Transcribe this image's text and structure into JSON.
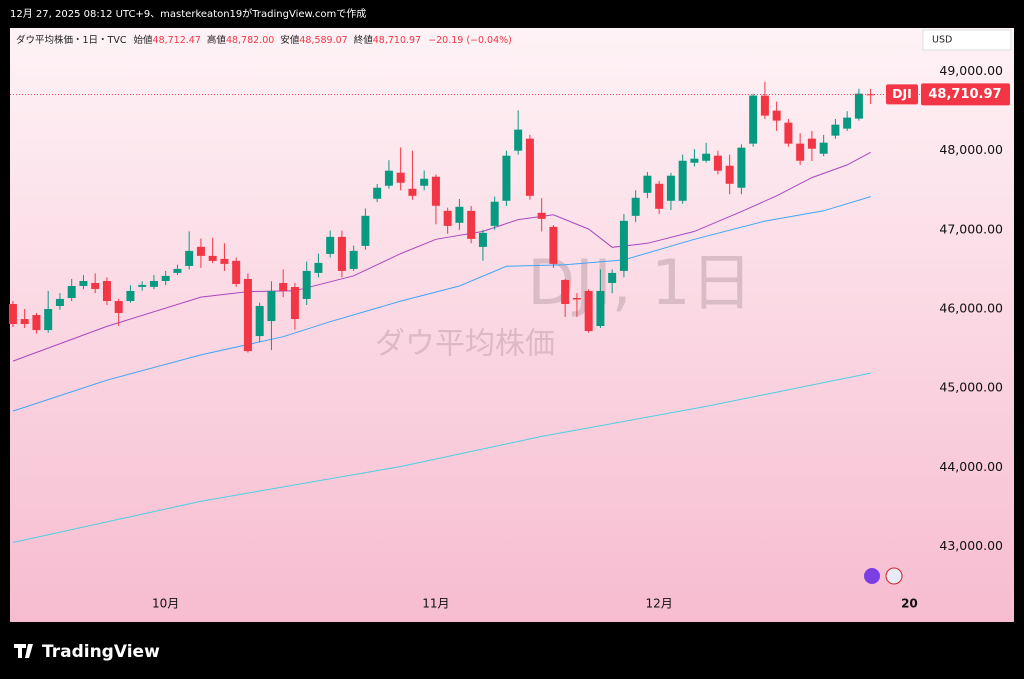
{
  "caption": "12月 27, 2025 08:12 UTC+9、masterkeaton19がTradingView.comで作成",
  "brand": "TradingView",
  "chart_data": {
    "type": "candlestick",
    "symbol_line": "ダウ平均株価・1日・TVC",
    "ohlc_header": [
      {
        "label": "始値",
        "value": "48,712.47"
      },
      {
        "label": "高値",
        "value": "48,782.00"
      },
      {
        "label": "安値",
        "value": "48,589.07"
      },
      {
        "label": "終値",
        "value": "48,710.97"
      }
    ],
    "change": "−20.19 (−0.04%)",
    "currency": "USD",
    "watermark": [
      "DJI, 1日",
      "ダウ平均株価"
    ],
    "ticker": "DJI",
    "last_price": {
      "value": 48710.97,
      "label": "48,710.97"
    },
    "up_color": "#089981",
    "down_color": "#f23645",
    "categories": [
      null,
      null,
      null,
      null,
      null,
      null,
      null,
      null,
      null,
      null,
      null,
      null,
      null,
      null,
      null,
      null,
      null,
      null,
      null,
      null,
      null,
      null,
      null,
      null,
      null,
      null,
      null,
      null,
      null,
      null,
      null,
      null,
      null,
      null,
      null,
      null,
      null,
      null,
      null,
      null,
      null,
      null,
      null,
      null,
      null,
      null,
      null,
      null,
      null,
      null,
      null,
      null,
      null,
      null,
      null,
      null,
      null,
      null,
      null,
      null,
      null,
      null,
      null,
      null,
      null,
      null,
      null,
      null,
      null,
      null,
      null,
      null,
      null,
      null
    ],
    "open": [
      46063,
      45873,
      45924,
      45734,
      46038,
      46139,
      46291,
      46329,
      46354,
      46101,
      46101,
      46280,
      46280,
      46354,
      46456,
      46544,
      46785,
      46671,
      46633,
      46608,
      46380,
      45658,
      45848,
      46329,
      46278,
      46127,
      46456,
      46696,
      46911,
      46506,
      46797,
      47393,
      47557,
      47722,
      47519,
      47557,
      47671,
      47240,
      47089,
      47240,
      46785,
      47050,
      47367,
      48000,
      48152,
      47215,
      47038,
      46367,
      46139,
      46228,
      45785,
      46329,
      46481,
      47177,
      47468,
      47582,
      47367,
      47367,
      47848,
      47873,
      47937,
      47810,
      47532,
      48089,
      48696,
      48506,
      48354,
      48089,
      48152,
      47962,
      48190,
      48279,
      48405,
      48712.47
    ],
    "high": [
      46101,
      46000,
      45950,
      46228,
      46200,
      46380,
      46430,
      46450,
      46400,
      46130,
      46300,
      46350,
      46430,
      46480,
      46560,
      46980,
      46890,
      46900,
      46830,
      46650,
      46450,
      46080,
      46350,
      46500,
      46330,
      46600,
      46700,
      46990,
      46990,
      46800,
      47270,
      47580,
      47880,
      48040,
      48000,
      47750,
      47700,
      47280,
      47390,
      47300,
      47000,
      47420,
      48000,
      48510,
      48200,
      47400,
      47060,
      46380,
      46200,
      46250,
      46500,
      46500,
      47200,
      47500,
      47730,
      47620,
      47720,
      47950,
      48020,
      48100,
      48000,
      47950,
      48080,
      48720,
      48870,
      48620,
      48400,
      48220,
      48250,
      48200,
      48400,
      48500,
      48782,
      48782
    ],
    "low": [
      45772,
      45760,
      45690,
      45700,
      45990,
      46100,
      46250,
      46200,
      46050,
      45785,
      46080,
      46230,
      46250,
      46300,
      46430,
      46500,
      46520,
      46580,
      46480,
      46280,
      45450,
      45580,
      45480,
      46150,
      45740,
      46050,
      46400,
      46650,
      46400,
      46480,
      46750,
      47350,
      47520,
      47500,
      47380,
      47500,
      47070,
      46950,
      47000,
      46830,
      46610,
      47000,
      47300,
      47950,
      47380,
      46980,
      46520,
      45900,
      45900,
      45700,
      45760,
      46200,
      46400,
      47100,
      47400,
      47200,
      47250,
      47330,
      47800,
      47850,
      47700,
      47450,
      47450,
      48050,
      48400,
      48250,
      48050,
      47820,
      47870,
      47930,
      48150,
      48250,
      48380,
      48589.07
    ],
    "close": [
      45810,
      45810,
      45734,
      46000,
      46127,
      46291,
      46354,
      46253,
      46101,
      45950,
      46228,
      46304,
      46354,
      46418,
      46507,
      46734,
      46671,
      46608,
      46570,
      46316,
      45468,
      46038,
      46228,
      46228,
      45873,
      46481,
      46582,
      46911,
      46481,
      46734,
      47177,
      47532,
      47747,
      47595,
      47430,
      47646,
      47304,
      47050,
      47291,
      46886,
      46962,
      47355,
      47937,
      48266,
      47430,
      47139,
      46570,
      46063,
      46120,
      45722,
      46228,
      46456,
      47114,
      47405,
      47684,
      47266,
      47684,
      47873,
      47899,
      47962,
      47747,
      47582,
      48038,
      48696,
      48443,
      48380,
      48089,
      47873,
      48025,
      48101,
      48329,
      48418,
      48721,
      48710.97
    ],
    "overlays": [
      {
        "color": "#ab47bc",
        "x": [
          0,
          8,
          16,
          20,
          24,
          29,
          33,
          36,
          40,
          43,
          46,
          49,
          51,
          54,
          58,
          62,
          65,
          68,
          71,
          73
        ],
        "values": [
          45342,
          45780,
          46150,
          46220,
          46230,
          46420,
          46700,
          46880,
          46980,
          47130,
          47190,
          47010,
          46780,
          46830,
          46980,
          47230,
          47430,
          47660,
          47820,
          47980
        ]
      },
      {
        "color": "#42a5f5",
        "x": [
          0,
          8,
          16,
          23,
          27,
          33,
          38,
          42,
          47,
          52,
          58,
          64,
          69,
          73
        ],
        "values": [
          44710,
          45100,
          45420,
          45650,
          45840,
          46100,
          46290,
          46540,
          46560,
          46620,
          46880,
          47110,
          47240,
          47420
        ]
      },
      {
        "color": "#4dd0e1",
        "x": [
          0,
          16,
          33,
          45,
          59,
          73
        ],
        "values": [
          43050,
          43570,
          44010,
          44390,
          44770,
          45190
        ]
      }
    ],
    "xlim": [
      -0.25,
      77.2
    ],
    "xticks": [
      {
        "value": 13,
        "label": "10月"
      },
      {
        "value": 36,
        "label": "11月"
      },
      {
        "value": 55,
        "label": "12月"
      },
      {
        "value": 76.3,
        "label": "20"
      }
    ],
    "ylim": [
      42450,
      49550
    ],
    "yticks": [
      {
        "value": 43000,
        "label": "43,000.00"
      },
      {
        "value": 44000,
        "label": "44,000.00"
      },
      {
        "value": 45000,
        "label": "45,000.00"
      },
      {
        "value": 46000,
        "label": "46,000.00"
      },
      {
        "value": 47000,
        "label": "47,000.00"
      },
      {
        "value": 48000,
        "label": "48,000.00"
      },
      {
        "value": 49000,
        "label": "49,000.00"
      }
    ]
  }
}
